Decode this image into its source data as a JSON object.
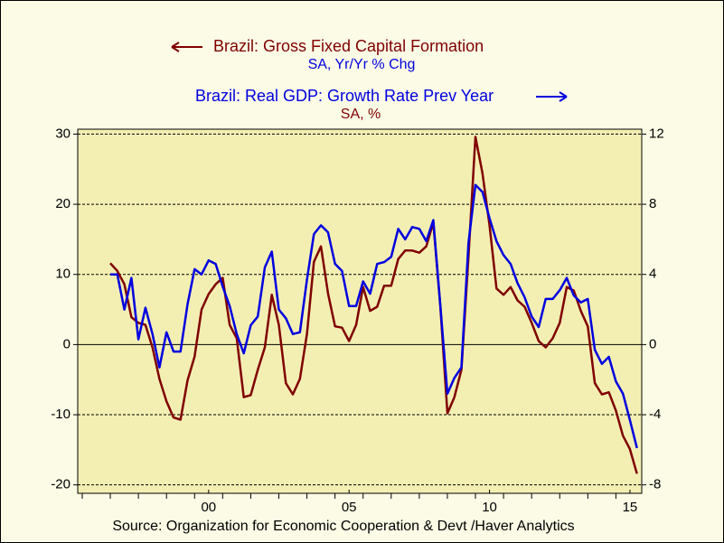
{
  "chart_data": {
    "type": "line",
    "series": [
      {
        "name": "Brazil: Gross Fixed Capital Formation",
        "units": "SA, Yr/Yr % Chg",
        "color": "#800000",
        "axis": "y",
        "values": [
          11.6,
          10.5,
          8.6,
          3.9,
          3.1,
          2.8,
          -0.4,
          -4.9,
          -8.1,
          -10.4,
          -10.7,
          -5.1,
          -1.7,
          5.0,
          7.2,
          8.6,
          9.5,
          2.8,
          0.9,
          -7.5,
          -7.2,
          -3.6,
          -0.4,
          7.1,
          2.8,
          -5.5,
          -7.1,
          -4.9,
          1.5,
          11.8,
          14.0,
          7.3,
          2.6,
          2.4,
          0.5,
          2.8,
          8.2,
          4.8,
          5.4,
          8.4,
          8.4,
          12.2,
          13.4,
          13.4,
          13.1,
          14.0,
          17.4,
          5.4,
          -9.8,
          -7.5,
          -3.6,
          12.5,
          29.6,
          24.4,
          17.0,
          8.0,
          7.1,
          8.2,
          6.3,
          5.4,
          3.1,
          0.5,
          -0.4,
          0.9,
          3.1,
          8.2,
          7.7,
          4.8,
          2.6,
          -5.5,
          -7.1,
          -6.8,
          -9.4,
          -13.0,
          -14.9,
          -18.4
        ]
      },
      {
        "name": "Brazil: Real GDP: Growth Rate Prev Year",
        "units": "SA, %",
        "color": "#0000e0",
        "axis": "y2",
        "values": [
          4.0,
          4.0,
          2.0,
          3.8,
          0.3,
          2.1,
          0.6,
          -1.3,
          0.7,
          -0.4,
          -0.4,
          2.3,
          4.3,
          4.0,
          4.8,
          4.6,
          3.3,
          2.2,
          0.6,
          -0.5,
          1.1,
          1.6,
          4.4,
          5.3,
          2.0,
          1.5,
          0.6,
          0.7,
          3.7,
          6.3,
          6.8,
          6.4,
          4.6,
          4.2,
          2.2,
          2.2,
          3.6,
          2.9,
          4.6,
          4.7,
          5.0,
          6.6,
          6.0,
          6.7,
          6.6,
          5.9,
          7.1,
          2.2,
          -2.8,
          -1.9,
          -1.3,
          5.8,
          9.1,
          8.7,
          7.2,
          5.9,
          5.1,
          4.6,
          3.5,
          2.7,
          1.6,
          1.0,
          2.6,
          2.6,
          3.1,
          3.8,
          2.8,
          2.4,
          2.6,
          -0.3,
          -1.1,
          -0.7,
          -2.1,
          -2.8,
          -4.3,
          -5.9
        ]
      }
    ],
    "x": [
      1996.5,
      1996.75,
      1997,
      1997.25,
      1997.5,
      1997.75,
      1998,
      1998.25,
      1998.5,
      1998.75,
      1999,
      1999.25,
      1999.5,
      1999.75,
      2000,
      2000.25,
      2000.5,
      2000.75,
      2001,
      2001.25,
      2001.5,
      2001.75,
      2002,
      2002.25,
      2002.5,
      2002.75,
      2003,
      2003.25,
      2003.5,
      2003.75,
      2004,
      2004.25,
      2004.5,
      2004.75,
      2005,
      2005.25,
      2005.5,
      2005.75,
      2006,
      2006.25,
      2006.5,
      2006.75,
      2007,
      2007.25,
      2007.5,
      2007.75,
      2008,
      2008.25,
      2008.5,
      2008.75,
      2009,
      2009.25,
      2009.5,
      2009.75,
      2010,
      2010.25,
      2010.5,
      2010.75,
      2011,
      2011.25,
      2011.5,
      2011.75,
      2012,
      2012.25,
      2012.5,
      2012.75,
      2013,
      2013.25,
      2013.5,
      2013.75,
      2014,
      2014.25,
      2014.5,
      2014.75,
      2015,
      2015.25
    ],
    "xlim": [
      1995.34,
      2015.42
    ],
    "xticks": [
      {
        "value": 2000,
        "label": "00"
      },
      {
        "value": 2005,
        "label": "05"
      },
      {
        "value": 2010,
        "label": "10"
      },
      {
        "value": 2015,
        "label": "15"
      }
    ],
    "xminor_ticks": [
      1995.5,
      1996.5,
      1997.5,
      1998.5,
      1999.5,
      2000.5,
      2001.5,
      2002.5,
      2003.5,
      2004.5,
      2005.5,
      2006.5,
      2007.5,
      2008.5,
      2009.5,
      2010.5,
      2011.5,
      2012.5,
      2013.5,
      2014.5
    ],
    "ylim": [
      -21.2,
      30.7
    ],
    "yticks": [
      -20,
      -10,
      0,
      10,
      20,
      30
    ],
    "y2lim": [
      -8.48,
      12.28
    ],
    "y2ticks": [
      -8,
      -4,
      0,
      4,
      8,
      12
    ],
    "grid": true,
    "source": "Source:  Organization for Economic Cooperation & Devt /Haver Analytics"
  }
}
